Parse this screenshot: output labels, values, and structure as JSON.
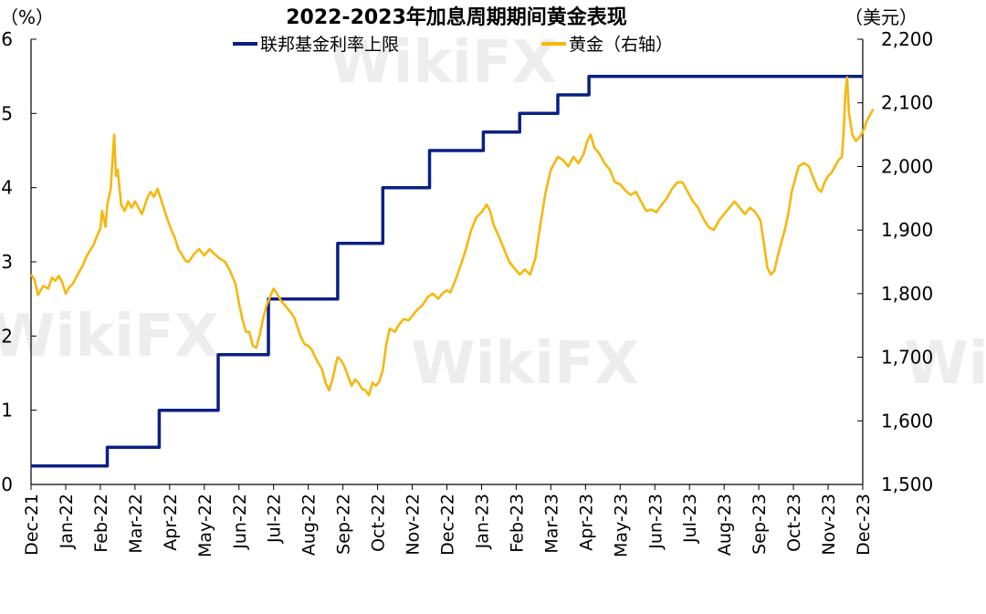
{
  "chart_data": {
    "type": "line",
    "title": "2022-2023年加息周期期间黄金表现",
    "left_axis_unit": "（%）",
    "right_axis_unit": "（美元）",
    "left_axis": {
      "min": 0,
      "max": 6,
      "ticks": [
        "0",
        "1",
        "2",
        "3",
        "4",
        "5",
        "6"
      ]
    },
    "right_axis": {
      "min": 1500,
      "max": 2200,
      "ticks": [
        "1,500",
        "1,600",
        "1,700",
        "1,800",
        "1,900",
        "2,000",
        "2,100",
        "2,200"
      ]
    },
    "x_labels": [
      "Dec-21",
      "Jan-22",
      "Feb-22",
      "Mar-22",
      "Apr-22",
      "May-22",
      "Jun-22",
      "Jul-22",
      "Aug-22",
      "Sep-22",
      "Oct-22",
      "Nov-22",
      "Dec-22",
      "Jan-23",
      "Feb-23",
      "Mar-23",
      "Apr-23",
      "May-23",
      "Jun-23",
      "Jul-23",
      "Aug-23",
      "Sep-23",
      "Oct-23",
      "Nov-23",
      "Dec-23"
    ],
    "grid": false,
    "legend_position": "top",
    "series": [
      {
        "name": "联邦基金利率上限",
        "axis": "left",
        "color": "#0b1f82",
        "type": "step",
        "points": [
          [
            0,
            0.25
          ],
          [
            2.2,
            0.25
          ],
          [
            2.2,
            0.5
          ],
          [
            3.7,
            0.5
          ],
          [
            3.7,
            1.0
          ],
          [
            5.4,
            1.0
          ],
          [
            5.4,
            1.75
          ],
          [
            6.85,
            1.75
          ],
          [
            6.85,
            2.5
          ],
          [
            8.85,
            2.5
          ],
          [
            8.85,
            3.25
          ],
          [
            10.15,
            3.25
          ],
          [
            10.15,
            4.0
          ],
          [
            11.5,
            4.0
          ],
          [
            11.5,
            4.5
          ],
          [
            13.05,
            4.5
          ],
          [
            13.05,
            4.75
          ],
          [
            14.1,
            4.75
          ],
          [
            14.1,
            5.0
          ],
          [
            15.2,
            5.0
          ],
          [
            15.2,
            5.25
          ],
          [
            16.1,
            5.25
          ],
          [
            16.1,
            5.5
          ],
          [
            24,
            5.5
          ]
        ]
      },
      {
        "name": "黄金（右轴）",
        "axis": "right",
        "color": "#f5b80e",
        "type": "line",
        "points": [
          [
            0,
            1830
          ],
          [
            0.1,
            1822
          ],
          [
            0.2,
            1798
          ],
          [
            0.35,
            1812
          ],
          [
            0.5,
            1808
          ],
          [
            0.6,
            1825
          ],
          [
            0.7,
            1820
          ],
          [
            0.8,
            1828
          ],
          [
            0.9,
            1818
          ],
          [
            1.0,
            1800
          ],
          [
            1.1,
            1810
          ],
          [
            1.2,
            1815
          ],
          [
            1.35,
            1830
          ],
          [
            1.5,
            1845
          ],
          [
            1.6,
            1858
          ],
          [
            1.7,
            1868
          ],
          [
            1.8,
            1876
          ],
          [
            1.9,
            1890
          ],
          [
            2.0,
            1902
          ],
          [
            2.05,
            1930
          ],
          [
            2.15,
            1905
          ],
          [
            2.2,
            1940
          ],
          [
            2.3,
            1965
          ],
          [
            2.35,
            2010
          ],
          [
            2.4,
            2050
          ],
          [
            2.45,
            1985
          ],
          [
            2.5,
            1995
          ],
          [
            2.6,
            1940
          ],
          [
            2.7,
            1930
          ],
          [
            2.8,
            1945
          ],
          [
            2.9,
            1935
          ],
          [
            3.0,
            1945
          ],
          [
            3.2,
            1925
          ],
          [
            3.35,
            1950
          ],
          [
            3.45,
            1960
          ],
          [
            3.55,
            1952
          ],
          [
            3.65,
            1965
          ],
          [
            3.8,
            1940
          ],
          [
            3.95,
            1915
          ],
          [
            4.05,
            1900
          ],
          [
            4.15,
            1888
          ],
          [
            4.25,
            1870
          ],
          [
            4.35,
            1862
          ],
          [
            4.45,
            1852
          ],
          [
            4.55,
            1850
          ],
          [
            4.7,
            1862
          ],
          [
            4.85,
            1870
          ],
          [
            5.0,
            1860
          ],
          [
            5.15,
            1870
          ],
          [
            5.3,
            1862
          ],
          [
            5.45,
            1855
          ],
          [
            5.6,
            1850
          ],
          [
            5.75,
            1835
          ],
          [
            5.9,
            1815
          ],
          [
            6.0,
            1785
          ],
          [
            6.1,
            1760
          ],
          [
            6.2,
            1740
          ],
          [
            6.3,
            1740
          ],
          [
            6.4,
            1718
          ],
          [
            6.5,
            1715
          ],
          [
            6.6,
            1735
          ],
          [
            6.7,
            1762
          ],
          [
            6.8,
            1782
          ],
          [
            6.9,
            1795
          ],
          [
            7.0,
            1808
          ],
          [
            7.1,
            1800
          ],
          [
            7.2,
            1790
          ],
          [
            7.35,
            1780
          ],
          [
            7.5,
            1770
          ],
          [
            7.6,
            1762
          ],
          [
            7.7,
            1745
          ],
          [
            7.8,
            1730
          ],
          [
            7.9,
            1720
          ],
          [
            8.0,
            1718
          ],
          [
            8.1,
            1712
          ],
          [
            8.2,
            1700
          ],
          [
            8.3,
            1690
          ],
          [
            8.4,
            1680
          ],
          [
            8.5,
            1660
          ],
          [
            8.6,
            1648
          ],
          [
            8.7,
            1665
          ],
          [
            8.8,
            1690
          ],
          [
            8.85,
            1700
          ],
          [
            8.95,
            1695
          ],
          [
            9.05,
            1685
          ],
          [
            9.15,
            1670
          ],
          [
            9.25,
            1655
          ],
          [
            9.35,
            1665
          ],
          [
            9.45,
            1660
          ],
          [
            9.55,
            1650
          ],
          [
            9.65,
            1648
          ],
          [
            9.75,
            1640
          ],
          [
            9.85,
            1660
          ],
          [
            9.95,
            1655
          ],
          [
            10.05,
            1662
          ],
          [
            10.15,
            1680
          ],
          [
            10.25,
            1720
          ],
          [
            10.35,
            1745
          ],
          [
            10.5,
            1740
          ],
          [
            10.6,
            1750
          ],
          [
            10.75,
            1760
          ],
          [
            10.9,
            1758
          ],
          [
            11.0,
            1765
          ],
          [
            11.15,
            1775
          ],
          [
            11.3,
            1782
          ],
          [
            11.45,
            1795
          ],
          [
            11.6,
            1800
          ],
          [
            11.75,
            1792
          ],
          [
            11.9,
            1802
          ],
          [
            12.0,
            1805
          ],
          [
            12.1,
            1802
          ],
          [
            12.25,
            1822
          ],
          [
            12.4,
            1845
          ],
          [
            12.55,
            1870
          ],
          [
            12.7,
            1900
          ],
          [
            12.85,
            1920
          ],
          [
            13.0,
            1928
          ],
          [
            13.15,
            1940
          ],
          [
            13.25,
            1930
          ],
          [
            13.35,
            1908
          ],
          [
            13.5,
            1890
          ],
          [
            13.65,
            1870
          ],
          [
            13.8,
            1850
          ],
          [
            13.95,
            1840
          ],
          [
            14.1,
            1830
          ],
          [
            14.25,
            1838
          ],
          [
            14.4,
            1830
          ],
          [
            14.55,
            1855
          ],
          [
            14.7,
            1910
          ],
          [
            14.85,
            1960
          ],
          [
            15.0,
            1995
          ],
          [
            15.2,
            2015
          ],
          [
            15.35,
            2010
          ],
          [
            15.5,
            2000
          ],
          [
            15.65,
            2015
          ],
          [
            15.8,
            2005
          ],
          [
            15.95,
            2020
          ],
          [
            16.05,
            2040
          ],
          [
            16.15,
            2050
          ],
          [
            16.25,
            2030
          ],
          [
            16.4,
            2020
          ],
          [
            16.55,
            2005
          ],
          [
            16.7,
            1995
          ],
          [
            16.85,
            1975
          ],
          [
            17.0,
            1972
          ],
          [
            17.15,
            1962
          ],
          [
            17.3,
            1955
          ],
          [
            17.45,
            1960
          ],
          [
            17.6,
            1945
          ],
          [
            17.75,
            1930
          ],
          [
            17.9,
            1932
          ],
          [
            18.05,
            1928
          ],
          [
            18.2,
            1940
          ],
          [
            18.35,
            1950
          ],
          [
            18.5,
            1965
          ],
          [
            18.65,
            1975
          ],
          [
            18.8,
            1975
          ],
          [
            18.95,
            1960
          ],
          [
            19.1,
            1945
          ],
          [
            19.25,
            1935
          ],
          [
            19.4,
            1918
          ],
          [
            19.55,
            1905
          ],
          [
            19.7,
            1900
          ],
          [
            19.85,
            1915
          ],
          [
            20.0,
            1925
          ],
          [
            20.15,
            1935
          ],
          [
            20.3,
            1945
          ],
          [
            20.45,
            1935
          ],
          [
            20.6,
            1925
          ],
          [
            20.75,
            1935
          ],
          [
            20.9,
            1928
          ],
          [
            21.05,
            1915
          ],
          [
            21.15,
            1878
          ],
          [
            21.25,
            1840
          ],
          [
            21.35,
            1830
          ],
          [
            21.45,
            1836
          ],
          [
            21.55,
            1860
          ],
          [
            21.65,
            1880
          ],
          [
            21.75,
            1900
          ],
          [
            21.85,
            1925
          ],
          [
            21.95,
            1960
          ],
          [
            22.05,
            1980
          ],
          [
            22.15,
            2000
          ],
          [
            22.3,
            2005
          ],
          [
            22.45,
            2000
          ],
          [
            22.55,
            1985
          ],
          [
            22.7,
            1965
          ],
          [
            22.8,
            1960
          ],
          [
            22.9,
            1975
          ],
          [
            23.0,
            1985
          ],
          [
            23.1,
            1990
          ],
          [
            23.2,
            2000
          ],
          [
            23.3,
            2010
          ],
          [
            23.4,
            2015
          ],
          [
            23.45,
            2055
          ],
          [
            23.5,
            2115
          ],
          [
            23.55,
            2140
          ],
          [
            23.6,
            2085
          ],
          [
            23.7,
            2050
          ],
          [
            23.8,
            2040
          ],
          [
            23.9,
            2045
          ],
          [
            24.0,
            2055
          ],
          [
            24.05,
            2060
          ],
          [
            24.1,
            2070
          ],
          [
            24.2,
            2080
          ],
          [
            24.3,
            2090
          ]
        ]
      }
    ]
  },
  "watermark": "WikiFX"
}
